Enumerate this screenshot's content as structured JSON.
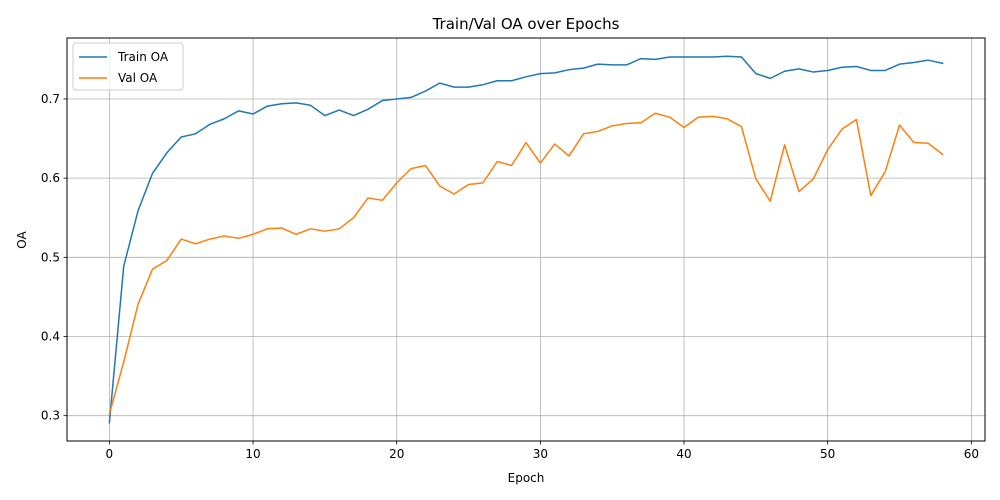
{
  "chart_data": {
    "type": "line",
    "title": "Train/Val OA over Epochs",
    "xlabel": "Epoch",
    "ylabel": "OA",
    "xlim": [
      -2.95,
      60.95
    ],
    "ylim": [
      0.268,
      0.777
    ],
    "x_ticks": [
      0,
      10,
      20,
      30,
      40,
      50,
      60
    ],
    "y_ticks": [
      0.3,
      0.4,
      0.5,
      0.6,
      0.7
    ],
    "grid": true,
    "legend": "upper-left",
    "x": [
      0,
      1,
      2,
      3,
      4,
      5,
      6,
      7,
      8,
      9,
      10,
      11,
      12,
      13,
      14,
      15,
      16,
      17,
      18,
      19,
      20,
      21,
      22,
      23,
      24,
      25,
      26,
      27,
      28,
      29,
      30,
      31,
      32,
      33,
      34,
      35,
      36,
      37,
      38,
      39,
      40,
      41,
      42,
      43,
      44,
      45,
      46,
      47,
      48,
      49,
      50,
      51,
      52,
      53,
      54,
      55,
      56,
      57,
      58
    ],
    "series": [
      {
        "name": "Train OA",
        "color": "#1f77b4",
        "values": [
          0.291,
          0.489,
          0.559,
          0.606,
          0.632,
          0.652,
          0.656,
          0.668,
          0.675,
          0.685,
          0.681,
          0.691,
          0.694,
          0.695,
          0.692,
          0.679,
          0.686,
          0.679,
          0.687,
          0.698,
          0.7,
          0.702,
          0.71,
          0.72,
          0.715,
          0.715,
          0.718,
          0.723,
          0.723,
          0.728,
          0.732,
          0.733,
          0.737,
          0.739,
          0.744,
          0.743,
          0.743,
          0.751,
          0.75,
          0.753,
          0.753,
          0.753,
          0.753,
          0.754,
          0.753,
          0.732,
          0.726,
          0.735,
          0.738,
          0.734,
          0.736,
          0.74,
          0.741,
          0.736,
          0.736,
          0.744,
          0.746,
          0.749,
          0.745
        ]
      },
      {
        "name": "Val OA",
        "color": "#ff7f0e",
        "values": [
          0.302,
          0.368,
          0.441,
          0.485,
          0.496,
          0.523,
          0.517,
          0.523,
          0.527,
          0.524,
          0.529,
          0.536,
          0.537,
          0.529,
          0.536,
          0.533,
          0.536,
          0.55,
          0.575,
          0.572,
          0.594,
          0.612,
          0.616,
          0.59,
          0.58,
          0.592,
          0.594,
          0.621,
          0.616,
          0.645,
          0.619,
          0.643,
          0.628,
          0.656,
          0.659,
          0.666,
          0.669,
          0.67,
          0.682,
          0.677,
          0.664,
          0.677,
          0.678,
          0.675,
          0.665,
          0.599,
          0.571,
          0.642,
          0.583,
          0.599,
          0.636,
          0.662,
          0.674,
          0.578,
          0.608,
          0.667,
          0.645,
          0.644,
          0.63
        ]
      }
    ]
  }
}
